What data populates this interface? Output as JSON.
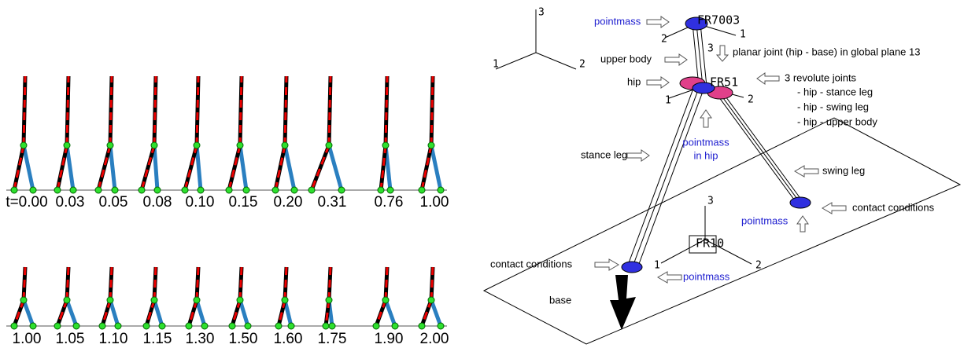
{
  "sequence": {
    "rows": [
      {
        "labels": [
          "t=0.00",
          "0.03",
          "0.05",
          "0.08",
          "0.10",
          "0.15",
          "0.20",
          "0.31",
          "0.76",
          "1.00"
        ]
      },
      {
        "labels": [
          "1.00",
          "1.05",
          "1.10",
          "1.15",
          "1.30",
          "1.50",
          "1.60",
          "1.75",
          "1.90",
          "2.00"
        ]
      }
    ]
  },
  "model": {
    "global_triad": {
      "axis_3": "3",
      "axis_1": "1",
      "axis_2": "2"
    },
    "top_pointmass": "pointmass",
    "top_frame": {
      "name": "FR7003",
      "axis_2": "2",
      "axis_1": "1",
      "axis_3": "3"
    },
    "upper_body": "upper body",
    "planar_joint": "planar joint (hip - base) in global plane 13",
    "hip": "hip",
    "hip_frame": {
      "name": "FR51",
      "axis_1": "1",
      "axis_2": "2"
    },
    "revolute_joints": {
      "title": "3 revolute joints",
      "items": [
        "- hip - stance leg",
        "- hip - swing leg",
        "- hip - upper body"
      ]
    },
    "hip_pointmass": [
      "pointmass",
      "in hip"
    ],
    "stance_leg": "stance leg",
    "swing_leg": "swing leg",
    "swing_pointmass": "pointmass",
    "swing_contact": "contact conditions",
    "base_frame": {
      "name": "FR10",
      "axis_3": "3",
      "axis_1": "1",
      "axis_2": "2"
    },
    "stance_contact": "contact conditions",
    "stance_pointmass": "pointmass",
    "base": "base"
  }
}
